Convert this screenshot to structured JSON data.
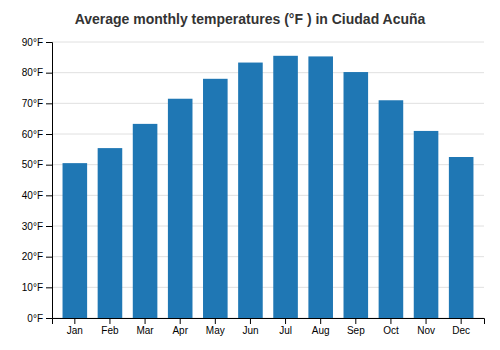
{
  "chart_data": {
    "type": "bar",
    "title": "Average monthly temperatures (°F ) in Ciudad Acuña",
    "categories": [
      "Jan",
      "Feb",
      "Mar",
      "Apr",
      "May",
      "Jun",
      "Jul",
      "Aug",
      "Sep",
      "Oct",
      "Nov",
      "Dec"
    ],
    "values": [
      50.5,
      55.4,
      63.3,
      71.5,
      78.0,
      83.3,
      85.5,
      85.3,
      80.2,
      71.0,
      61.0,
      52.5
    ],
    "ylim": [
      0,
      90
    ],
    "yticks": [
      {
        "value": 0,
        "label": "0°F"
      },
      {
        "value": 10,
        "label": "10°F"
      },
      {
        "value": 20,
        "label": "20°F"
      },
      {
        "value": 30,
        "label": "30°F"
      },
      {
        "value": 40,
        "label": "40°F"
      },
      {
        "value": 50,
        "label": "50°F"
      },
      {
        "value": 60,
        "label": "60°F"
      },
      {
        "value": 70,
        "label": "70°F"
      },
      {
        "value": 80,
        "label": "80°F"
      },
      {
        "value": 90,
        "label": "90°F"
      }
    ],
    "grid": true
  }
}
